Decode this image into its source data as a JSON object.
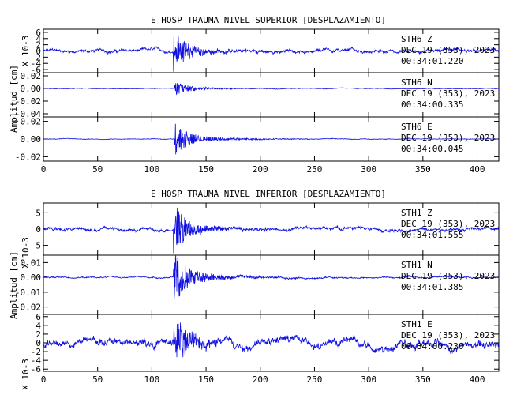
{
  "figure": {
    "panels_top_title": "E HOSP TRAUMA NIVEL SUPERIOR [DESPLAZAMIENTO]",
    "panels_bottom_title": "E HOSP TRAUMA NIVEL INFERIOR [DESPLAZAMIENTO]",
    "ylabel": "Amplitud [cm]",
    "colors": {
      "trace": "#1010e0",
      "axis": "#000000"
    }
  },
  "chart_data": [
    {
      "type": "line",
      "group": "superior",
      "station": "STH6",
      "component": "Z",
      "date": "DEC 19 (353), 2023",
      "time": "00:34:01.220",
      "scale": "X 10-3",
      "ylim": [
        -7,
        7
      ],
      "yticks": [
        "6",
        "4",
        "2",
        "0",
        "-2",
        "-4",
        "-6"
      ],
      "xlim": [
        0,
        420
      ],
      "baseline_amp": 0.9,
      "event_amp": 7.0,
      "event_onset": 120
    },
    {
      "type": "line",
      "group": "superior",
      "station": "STH6",
      "component": "N",
      "date": "DEC 19 (353), 2023",
      "time": "00:34:00.335",
      "ylim": [
        -0.045,
        0.025
      ],
      "yticks": [
        "0.02",
        "0.00",
        "-0.02",
        "-0.04"
      ],
      "xlim": [
        0,
        420
      ],
      "baseline_amp": 0.0008,
      "event_amp": 0.012,
      "event_onset": 121
    },
    {
      "type": "line",
      "group": "superior",
      "station": "STH6",
      "component": "E",
      "date": "DEC 19 (353), 2023",
      "time": "00:34:00.045",
      "ylim": [
        -0.025,
        0.025
      ],
      "yticks": [
        "0.02",
        "0.00",
        "-0.02"
      ],
      "xlim": [
        0,
        420
      ],
      "baseline_amp": 0.0006,
      "event_amp": 0.02,
      "event_onset": 121
    },
    {
      "type": "line",
      "group": "inferior",
      "station": "STH1",
      "component": "Z",
      "date": "DEC 19 (353), 2023",
      "time": "00:34:01.555",
      "scale": "X 10-3",
      "ylim": [
        -8,
        8
      ],
      "yticks": [
        "5",
        "0",
        "-5"
      ],
      "xlim": [
        0,
        420
      ],
      "baseline_amp": 0.9,
      "event_amp": 7.5,
      "event_onset": 120
    },
    {
      "type": "line",
      "group": "inferior",
      "station": "STH1",
      "component": "N",
      "date": "DEC 19 (353), 2023",
      "time": "00:34:01.385",
      "ylim": [
        -0.025,
        0.015
      ],
      "yticks": [
        "0.01",
        "0.00",
        "-0.01",
        "-0.02"
      ],
      "xlim": [
        0,
        420
      ],
      "baseline_amp": 0.0008,
      "event_amp": 0.02,
      "event_onset": 120
    },
    {
      "type": "line",
      "group": "inferior",
      "station": "STH1",
      "component": "E",
      "date": "DEC 19 (353), 2023",
      "time": "00:34:00.230",
      "scale": "X 10-3",
      "ylim": [
        -6.5,
        6.5
      ],
      "yticks": [
        "6",
        "4",
        "2",
        "0",
        "-2",
        "-4",
        "-6"
      ],
      "xlim": [
        0,
        420
      ],
      "baseline_amp": 1.6,
      "event_amp": 6.0,
      "event_onset": 120
    }
  ],
  "xticks": [
    "0",
    "50",
    "100",
    "150",
    "200",
    "250",
    "300",
    "350",
    "400"
  ],
  "xtick_values": [
    0,
    50,
    100,
    150,
    200,
    250,
    300,
    350,
    400
  ]
}
